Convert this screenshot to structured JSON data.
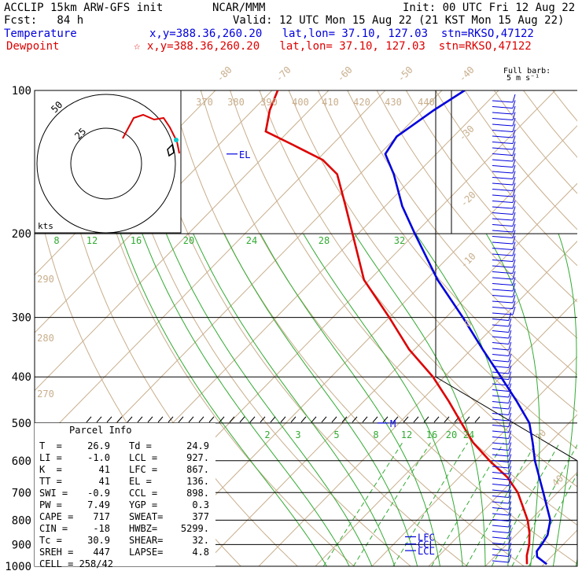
{
  "header": {
    "model": "ACCLIP 15km ARW-GFS init",
    "org": "NCAR/MMM",
    "init": "Init: 00 UTC Fri 12 Aug 22",
    "fcst": "Fcst:   84 h",
    "valid": "Valid: 12 UTC Mon 15 Aug 22 (21 KST Mon 15 Aug 22)",
    "temp_label": "Temperature",
    "temp_loc": "x,y=388.36,260.20   lat,lon= 37.10, 127.03  stn=RKSO,47122",
    "dew_label": "Dewpoint",
    "dew_loc": "☆ x,y=388.36,260.20   lat,lon= 37.10, 127.03  stn=RKSO,47122",
    "barb_title1": "Full barb:",
    "barb_title2": "5 m s⁻¹"
  },
  "colors": {
    "temperature": "#0000dd",
    "dewpoint": "#dd0000",
    "isotherm_tan": "#c8ae8c",
    "mixing_ratio": "#33aa33",
    "moist_adiabat": "#33aa33",
    "grid": "#000000"
  },
  "parcel": {
    "title": "Parcel Info",
    "rows": [
      [
        "T  =",
        "26.9",
        "Td =",
        "24.9"
      ],
      [
        "LI =",
        "-1.0",
        "LCL =",
        "927."
      ],
      [
        "K  =",
        "41",
        "LFC =",
        "867."
      ],
      [
        "TT =",
        "41",
        "EL =",
        "136."
      ],
      [
        "SWI =",
        "-0.9",
        "CCL =",
        "898."
      ],
      [
        "PW =",
        "7.49",
        "YGP =",
        "0.3"
      ],
      [
        "CAPE =",
        "717",
        "SWEAT=",
        "377"
      ],
      [
        "CIN =",
        "-18",
        "HWBZ=",
        "5299."
      ],
      [
        "Tc =",
        "30.9",
        "SHEAR=",
        "32."
      ],
      [
        "SREH =",
        "447",
        "LAPSE=",
        "4.8"
      ]
    ],
    "cell": "CELL = 258/42"
  },
  "hodograph": {
    "ring_labels": [
      "50",
      "25"
    ],
    "units": "kts"
  },
  "chart_data": {
    "type": "line",
    "title": "",
    "ylabel": "",
    "y_scale": "log-pressure",
    "ylim": [
      1000,
      100
    ],
    "pressure_levels": [
      100,
      200,
      300,
      400,
      500,
      600,
      700,
      800,
      900,
      1000
    ],
    "pressure_labels": [
      "100",
      "200",
      "300",
      "400",
      "500",
      "600",
      "700",
      "800",
      "900",
      "1000"
    ],
    "theta_labels_top": [
      "-80",
      "-70",
      "-60",
      "-50",
      "-40"
    ],
    "temp_labels_right": [
      "-30",
      "-20",
      "-10",
      "0",
      "30",
      "40"
    ],
    "dry_adiabat_labels": [
      "370",
      "380",
      "390",
      "400",
      "410",
      "420",
      "430",
      "440"
    ],
    "dry_adiabat_labels_left": [
      "290",
      "280",
      "270"
    ],
    "moist_labels": [
      "8",
      "12",
      "16",
      "20",
      "24",
      "28",
      "32"
    ],
    "mixing_ratio_labels": [
      "2",
      "3",
      "5",
      "8",
      "12",
      "16",
      "20",
      "24"
    ],
    "level_markers": [
      "EL",
      "M",
      "LFC",
      "CCL",
      "LCL"
    ],
    "series": [
      {
        "name": "Temperature",
        "profile": [
          [
            990,
            30.5
          ],
          [
            955,
            27.5
          ],
          [
            930,
            26.5
          ],
          [
            900,
            26.2
          ],
          [
            860,
            25.6
          ],
          [
            800,
            23.5
          ],
          [
            700,
            17.5
          ],
          [
            600,
            10.5
          ],
          [
            550,
            7.0
          ],
          [
            500,
            3.0
          ],
          [
            450,
            -3.0
          ],
          [
            400,
            -10.0
          ],
          [
            350,
            -18.0
          ],
          [
            300,
            -27.0
          ],
          [
            250,
            -38.0
          ],
          [
            200,
            -50.0
          ],
          [
            175,
            -57.0
          ],
          [
            150,
            -64.0
          ],
          [
            136,
            -69.0
          ],
          [
            125,
            -70.0
          ],
          [
            110,
            -68.0
          ],
          [
            100,
            -66.0
          ]
        ]
      },
      {
        "name": "Dewpoint",
        "profile": [
          [
            990,
            27.0
          ],
          [
            950,
            25.5
          ],
          [
            900,
            24.0
          ],
          [
            850,
            22.0
          ],
          [
            800,
            19.5
          ],
          [
            700,
            13.0
          ],
          [
            650,
            8.5
          ],
          [
            600,
            2.5
          ],
          [
            550,
            -3.5
          ],
          [
            500,
            -9.0
          ],
          [
            450,
            -15.0
          ],
          [
            400,
            -22.0
          ],
          [
            350,
            -31.0
          ],
          [
            300,
            -40.0
          ],
          [
            250,
            -51.0
          ],
          [
            200,
            -61.0
          ],
          [
            175,
            -67.0
          ],
          [
            150,
            -74.0
          ],
          [
            140,
            -79.0
          ],
          [
            130,
            -87.0
          ],
          [
            122,
            -94.0
          ],
          [
            110,
            -97.0
          ],
          [
            100,
            -99.0
          ]
        ]
      }
    ]
  }
}
